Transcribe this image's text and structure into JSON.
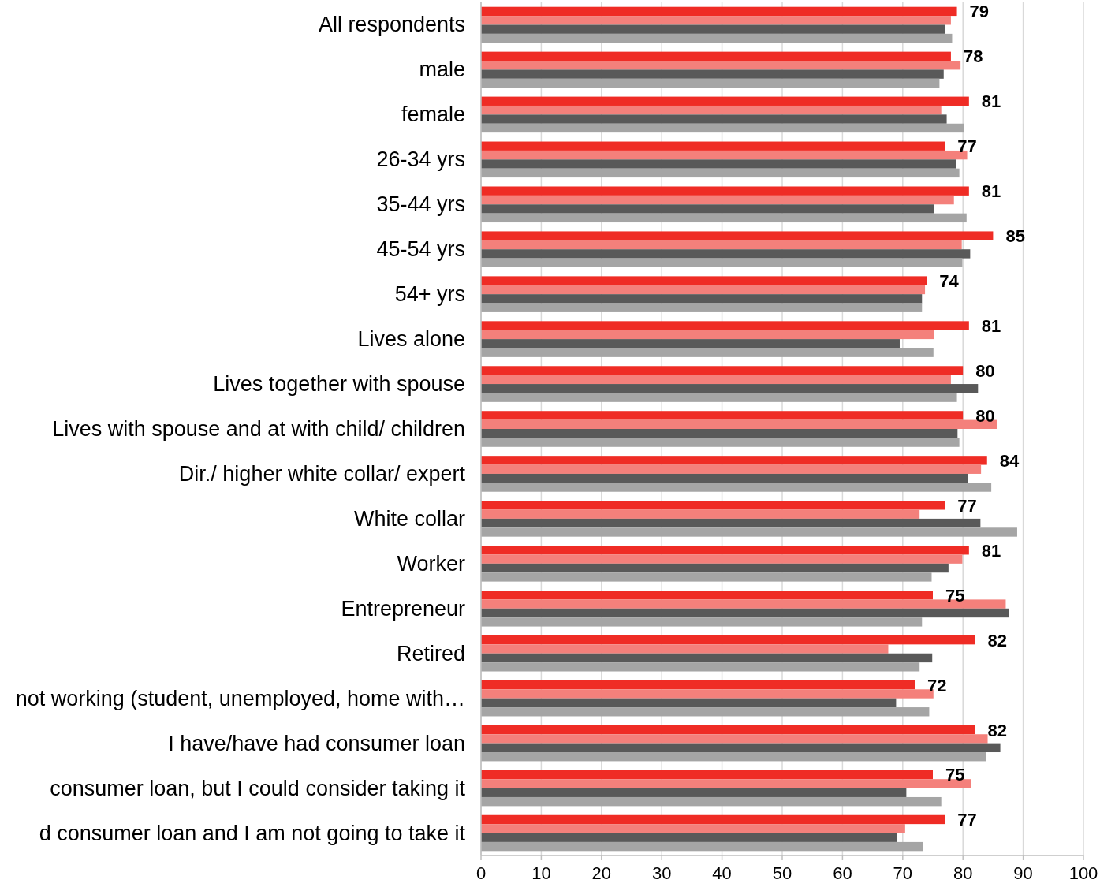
{
  "chart_data": {
    "type": "bar",
    "orientation": "horizontal",
    "categories": [
      "All respondents",
      "male",
      "female",
      "26-34 yrs",
      "35-44 yrs",
      "45-54 yrs",
      "54+ yrs",
      "Lives alone",
      "Lives together with spouse",
      "Lives with spouse and at with child/ children",
      "Dir./ higher white collar/ expert",
      "White collar",
      "Worker",
      "Entrepreneur",
      "Retired",
      "not working (student, unemployed, home with…",
      "I have/have had consumer loan",
      "consumer loan, but I could consider taking it",
      "d consumer loan and I am not going to take it"
    ],
    "series": [
      {
        "color": "#ef2c25",
        "values": [
          79,
          78,
          81,
          77,
          81,
          85,
          74,
          81,
          80,
          80,
          84,
          77,
          81,
          75,
          82,
          72,
          82,
          75,
          77
        ],
        "value_labels": [
          "79",
          "78",
          "81",
          "77",
          "81",
          "85",
          "74",
          "81",
          "80",
          "80",
          "84",
          "77",
          "81",
          "75",
          "82",
          "72",
          "82",
          "75",
          "77"
        ]
      },
      {
        "color": "#f4807b",
        "values": [
          78.0,
          79.6,
          76.4,
          80.7,
          78.5,
          79.8,
          73.7,
          75.2,
          78.0,
          85.6,
          83.0,
          72.8,
          79.9,
          87.1,
          67.6,
          75.1,
          84.1,
          81.4,
          70.4
        ]
      },
      {
        "color": "#595959",
        "values": [
          77.0,
          76.8,
          77.3,
          78.8,
          75.2,
          81.2,
          73.2,
          69.5,
          82.5,
          79.1,
          80.8,
          82.9,
          77.6,
          87.6,
          74.9,
          68.9,
          86.2,
          70.6,
          69.1
        ]
      },
      {
        "color": "#a5a5a5",
        "values": [
          78.2,
          76.1,
          80.2,
          79.4,
          80.6,
          79.9,
          73.2,
          75.1,
          79.0,
          79.4,
          84.7,
          89.0,
          74.8,
          73.2,
          72.8,
          74.4,
          83.9,
          76.4,
          73.4
        ]
      }
    ],
    "xlim": [
      0,
      100
    ],
    "xticks": [
      0,
      10,
      20,
      30,
      40,
      50,
      60,
      70,
      80,
      90,
      100
    ],
    "grid": "x"
  }
}
